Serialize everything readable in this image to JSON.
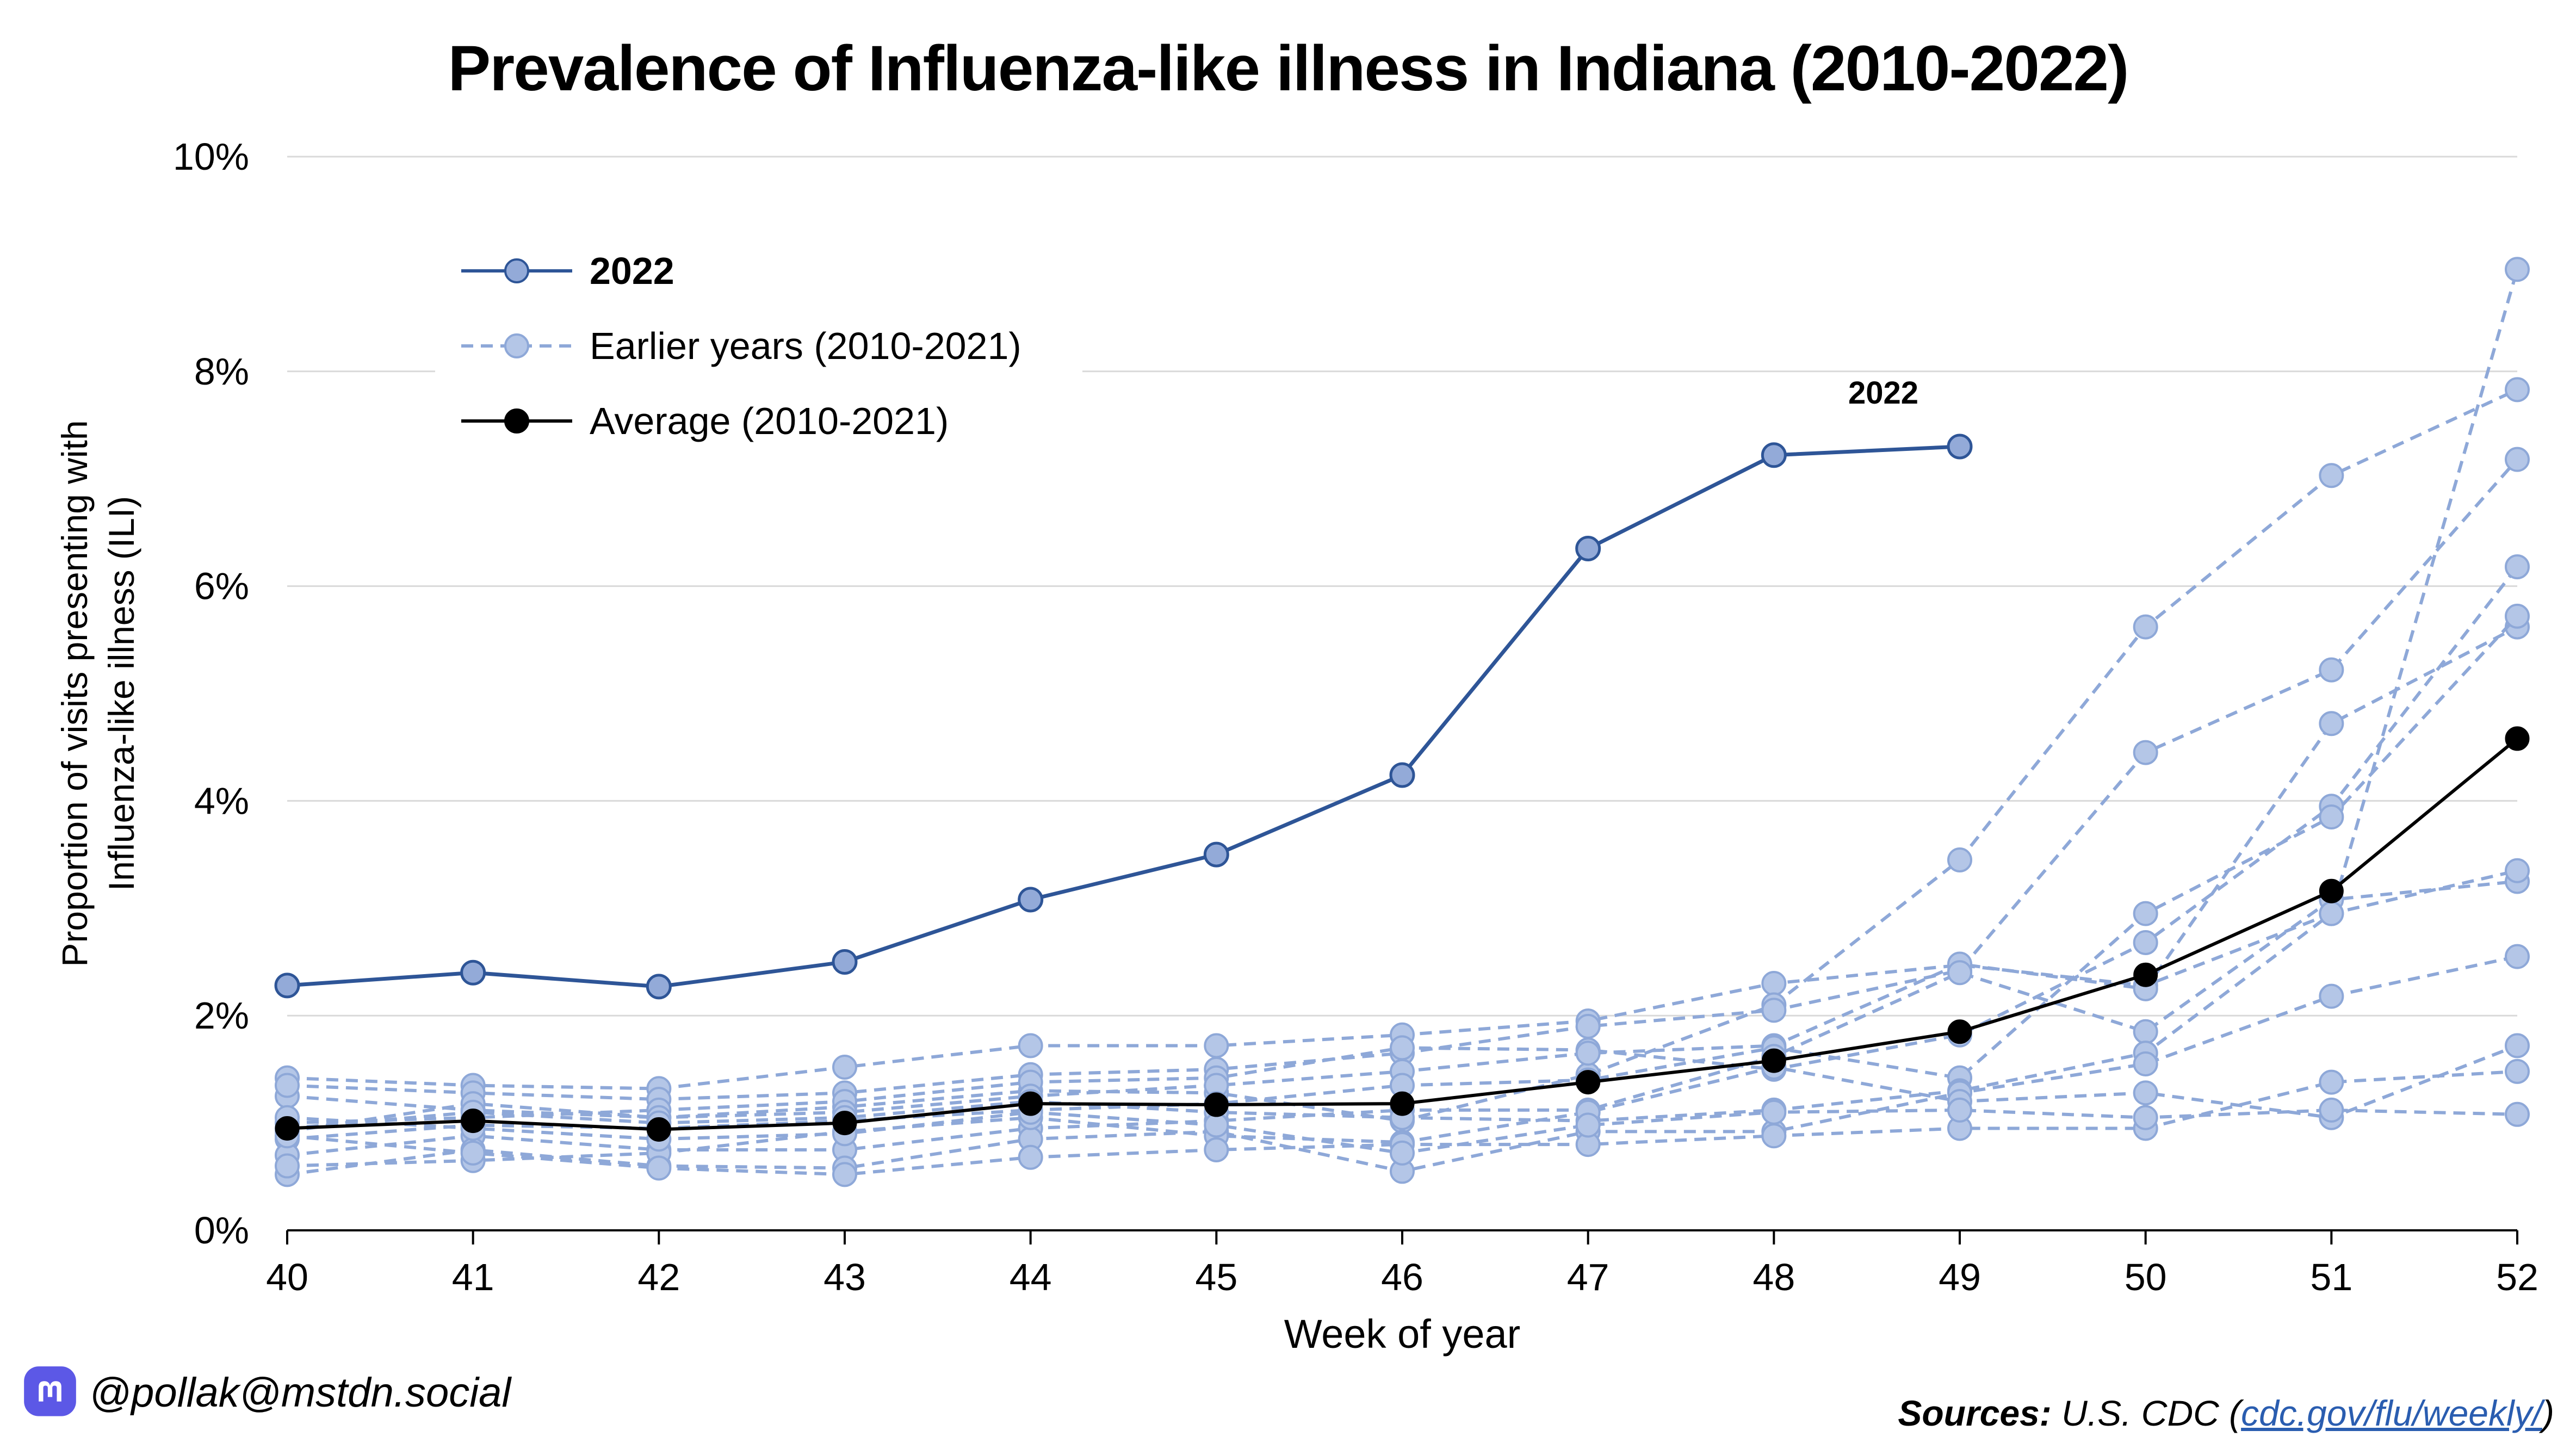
{
  "title": "Prevalence of Influenza-like illness in Indiana (2010-2022)",
  "footer": {
    "handle": "@pollak@mstdn.social",
    "sources_label": "Sources:",
    "sources_text_before": "U.S. CDC (",
    "sources_link": "cdc.gov/flu/weekly/",
    "sources_text_after": ")"
  },
  "colors": {
    "series_2022": "#2e5597",
    "series_2022_marker": "#93aad8",
    "earlier": "#8ea8d8",
    "earlier_marker": "#b4c6e7",
    "average": "#000000",
    "grid": "#d9d9d9"
  },
  "icons": {
    "handle_icon": "mastodon-icon"
  },
  "chart_data": {
    "type": "line",
    "title": "Prevalence of Influenza-like illness in Indiana (2010-2022)",
    "xlabel": "Week of year",
    "ylabel_lines": [
      "Proportion of visits presenting with",
      "Influenza-like illness (ILI)"
    ],
    "x": [
      40,
      41,
      42,
      43,
      44,
      45,
      46,
      47,
      48,
      49,
      50,
      51,
      52
    ],
    "ylim": [
      0,
      10
    ],
    "yticks": [
      0,
      2,
      4,
      6,
      8,
      10
    ],
    "ytick_labels": [
      "0%",
      "2%",
      "4%",
      "6%",
      "8%",
      "10%"
    ],
    "grid": "horizontal",
    "legend_position": "top-left",
    "legend": [
      {
        "label": "2022",
        "style": "2022"
      },
      {
        "label": "Earlier years (2010-2021)",
        "style": "earlier"
      },
      {
        "label": "Average (2010-2021)",
        "style": "average"
      }
    ],
    "annotation": {
      "text": "2022",
      "x": 48.4,
      "y": 7.7
    },
    "series_2022": {
      "name": "2022",
      "x": [
        40,
        41,
        42,
        43,
        44,
        45,
        46,
        47,
        48,
        49
      ],
      "values": [
        2.28,
        2.4,
        2.27,
        2.5,
        3.08,
        3.5,
        4.24,
        6.35,
        7.22,
        7.3
      ]
    },
    "average": {
      "name": "Average (2010-2021)",
      "values": [
        0.95,
        1.02,
        0.94,
        1.0,
        1.18,
        1.17,
        1.18,
        1.38,
        1.58,
        1.85,
        2.38,
        3.16,
        4.58
      ]
    },
    "earlier_years": [
      [
        1.42,
        1.35,
        1.32,
        1.52,
        1.72,
        1.72,
        1.82,
        1.95,
        2.3,
        2.47,
        2.28,
        2.95,
        8.95
      ],
      [
        1.25,
        1.12,
        1.05,
        1.15,
        1.3,
        1.28,
        1.02,
        1.45,
        2.1,
        3.45,
        5.62,
        7.03,
        7.83
      ],
      [
        1.35,
        1.28,
        1.22,
        1.28,
        1.45,
        1.5,
        1.65,
        1.9,
        2.05,
        2.42,
        4.45,
        5.22,
        7.18
      ],
      [
        1.0,
        1.05,
        1.12,
        1.2,
        1.38,
        1.42,
        1.7,
        1.68,
        1.5,
        1.82,
        2.68,
        3.95,
        6.18
      ],
      [
        0.92,
        1.18,
        1.05,
        1.1,
        1.25,
        1.35,
        1.48,
        1.65,
        1.72,
        2.48,
        2.25,
        4.72,
        5.62
      ],
      [
        0.85,
        0.98,
        0.95,
        1.02,
        1.12,
        1.18,
        1.35,
        1.4,
        1.7,
        1.42,
        2.95,
        3.85,
        5.72
      ],
      [
        0.7,
        0.88,
        0.75,
        0.75,
        0.95,
        1.02,
        1.12,
        1.12,
        1.62,
        2.4,
        1.85,
        3.08,
        3.25
      ],
      [
        0.95,
        1.1,
        1.0,
        1.05,
        1.2,
        1.1,
        1.05,
        1.02,
        1.12,
        1.3,
        1.65,
        2.95,
        3.35
      ],
      [
        0.52,
        0.75,
        0.6,
        0.58,
        0.85,
        0.92,
        0.55,
        0.92,
        0.92,
        1.28,
        1.55,
        2.18,
        2.55
      ],
      [
        0.6,
        0.65,
        0.72,
        0.92,
        1.05,
        0.88,
        0.82,
        1.1,
        1.52,
        1.2,
        1.28,
        1.05,
        1.72
      ],
      [
        0.88,
        0.72,
        0.58,
        0.52,
        0.68,
        0.75,
        0.8,
        0.8,
        0.88,
        0.95,
        0.95,
        1.38,
        1.48
      ],
      [
        1.05,
        0.95,
        0.85,
        0.9,
        1.1,
        0.98,
        0.72,
        0.98,
        1.1,
        1.12,
        1.05,
        1.12,
        1.08
      ]
    ]
  }
}
